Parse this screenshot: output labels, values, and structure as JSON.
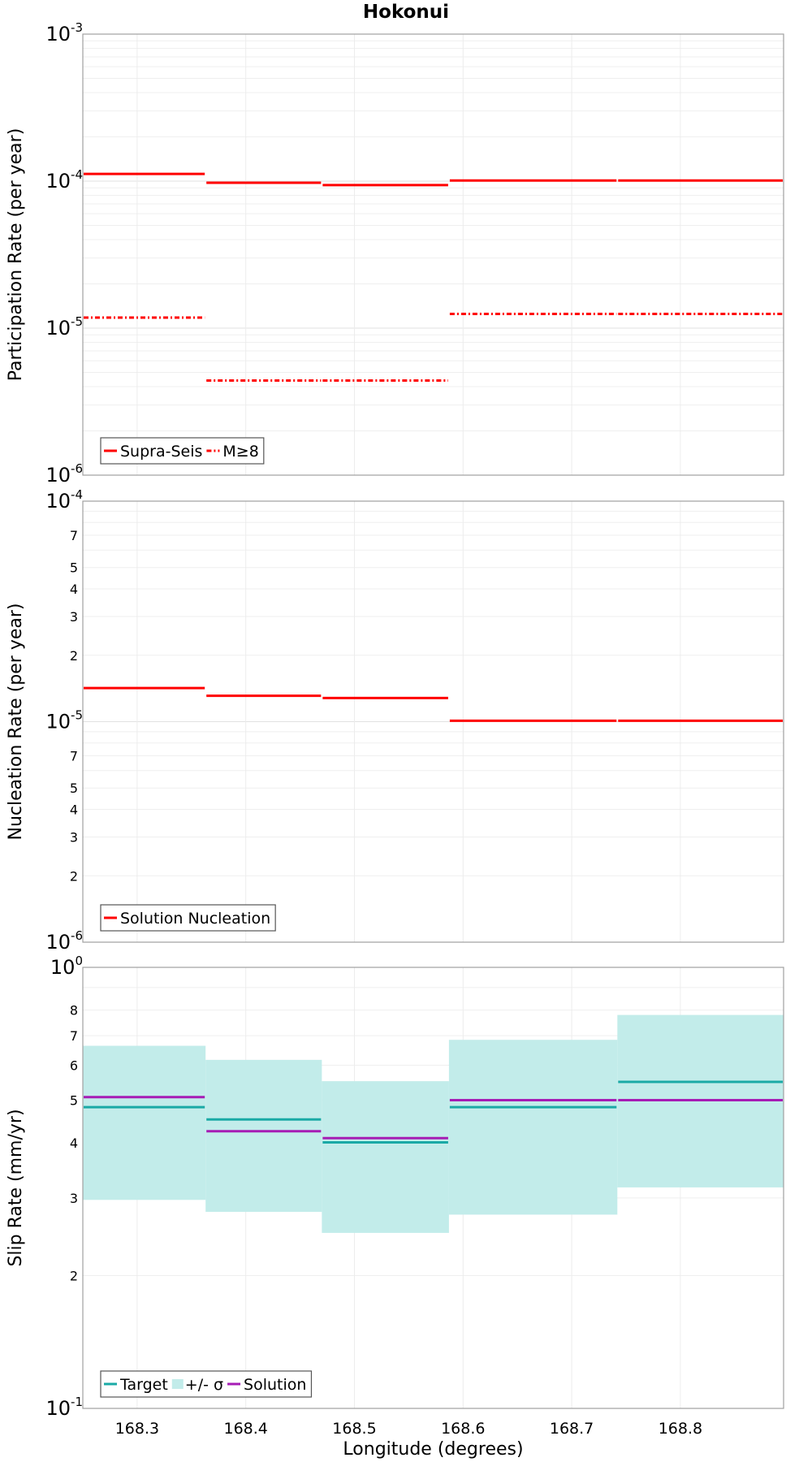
{
  "title": "Hokonui",
  "chart_data": [
    {
      "type": "line",
      "subtype": "step",
      "ylabel": "Participation Rate (per year)",
      "yscale": "log",
      "ylim": [
        1e-06,
        0.001
      ],
      "xlim": [
        168.25,
        168.895
      ],
      "grid": true,
      "legend_position": "bottom-left",
      "y_tick_labels": [
        {
          "base": "10",
          "exp": "-3",
          "value": 0.001
        },
        {
          "base": "10",
          "exp": "-4",
          "value": 0.0001
        },
        {
          "base": "10",
          "exp": "-5",
          "value": 1e-05
        },
        {
          "base": "10",
          "exp": "-6",
          "value": 1e-06
        }
      ],
      "series": [
        {
          "name": "Supra-Seis",
          "style": "solid",
          "color": "#ff0000",
          "segments": [
            {
              "x0": 168.25,
              "x1": 168.363,
              "y": 0.000112
            },
            {
              "x0": 168.363,
              "x1": 168.47,
              "y": 9.75e-05
            },
            {
              "x0": 168.47,
              "x1": 168.587,
              "y": 9.4e-05
            },
            {
              "x0": 168.587,
              "x1": 168.742,
              "y": 0.000101
            },
            {
              "x0": 168.742,
              "x1": 168.895,
              "y": 0.000101
            }
          ]
        },
        {
          "name": "M≥8",
          "style": "dashdot",
          "color": "#ff0000",
          "segments": [
            {
              "x0": 168.25,
              "x1": 168.363,
              "y": 1.18e-05
            },
            {
              "x0": 168.363,
              "x1": 168.47,
              "y": 4.4e-06
            },
            {
              "x0": 168.47,
              "x1": 168.587,
              "y": 4.4e-06
            },
            {
              "x0": 168.587,
              "x1": 168.742,
              "y": 1.25e-05
            },
            {
              "x0": 168.742,
              "x1": 168.895,
              "y": 1.25e-05
            }
          ]
        }
      ]
    },
    {
      "type": "line",
      "subtype": "step",
      "ylabel": "Nucleation Rate (per year)",
      "yscale": "log",
      "ylim": [
        1e-06,
        0.0001
      ],
      "xlim": [
        168.25,
        168.895
      ],
      "grid": true,
      "legend_position": "bottom-left",
      "y_tick_labels": [
        {
          "base": "10",
          "exp": "-4",
          "value": 0.0001
        },
        {
          "base": "10",
          "exp": "-5",
          "value": 1e-05
        },
        {
          "base": "10",
          "exp": "-6",
          "value": 1e-06
        }
      ],
      "minor_tick_labels": [
        {
          "label": "7",
          "value": 7e-05
        },
        {
          "label": "5",
          "value": 5e-05
        },
        {
          "label": "4",
          "value": 4e-05
        },
        {
          "label": "3",
          "value": 3e-05
        },
        {
          "label": "2",
          "value": 2e-05
        },
        {
          "label": "7",
          "value": 7e-06
        },
        {
          "label": "5",
          "value": 5e-06
        },
        {
          "label": "4",
          "value": 4e-06
        },
        {
          "label": "3",
          "value": 3e-06
        },
        {
          "label": "2",
          "value": 2e-06
        }
      ],
      "series": [
        {
          "name": "Solution Nucleation",
          "style": "solid",
          "color": "#ff0000",
          "segments": [
            {
              "x0": 168.25,
              "x1": 168.363,
              "y": 1.42e-05
            },
            {
              "x0": 168.363,
              "x1": 168.47,
              "y": 1.31e-05
            },
            {
              "x0": 168.47,
              "x1": 168.587,
              "y": 1.28e-05
            },
            {
              "x0": 168.587,
              "x1": 168.742,
              "y": 1.01e-05
            },
            {
              "x0": 168.742,
              "x1": 168.895,
              "y": 1.01e-05
            }
          ]
        }
      ]
    },
    {
      "type": "line",
      "subtype": "step",
      "xlabel": "Longitude (degrees)",
      "ylabel": "Slip Rate (mm/yr)",
      "yscale": "log",
      "ylim": [
        0.1,
        1
      ],
      "xlim": [
        168.25,
        168.895
      ],
      "grid": true,
      "legend_position": "bottom-left",
      "x_tick_labels": [
        "168.3",
        "168.4",
        "168.5",
        "168.6",
        "168.7",
        "168.8"
      ],
      "x_tick_values": [
        168.3,
        168.4,
        168.5,
        168.6,
        168.7,
        168.8
      ],
      "y_tick_labels": [
        {
          "base": "10",
          "exp": "0",
          "value": 1
        },
        {
          "base": "10",
          "exp": "-1",
          "value": 0.1
        }
      ],
      "minor_tick_labels": [
        {
          "label": "8",
          "value": 0.8
        },
        {
          "label": "7",
          "value": 0.7
        },
        {
          "label": "6",
          "value": 0.6
        },
        {
          "label": "5",
          "value": 0.5
        },
        {
          "label": "4",
          "value": 0.4
        },
        {
          "label": "3",
          "value": 0.3
        },
        {
          "label": "2",
          "value": 0.2
        }
      ],
      "band": {
        "name": "+/- σ",
        "color": "#c2ecea",
        "segments": [
          {
            "x0": 168.25,
            "x1": 168.363,
            "low": 0.297,
            "high": 0.664
          },
          {
            "x0": 168.363,
            "x1": 168.47,
            "low": 0.279,
            "high": 0.617
          },
          {
            "x0": 168.47,
            "x1": 168.587,
            "low": 0.25,
            "high": 0.552
          },
          {
            "x0": 168.587,
            "x1": 168.742,
            "low": 0.275,
            "high": 0.685
          },
          {
            "x0": 168.742,
            "x1": 168.895,
            "low": 0.317,
            "high": 0.78
          }
        ]
      },
      "series": [
        {
          "name": "Target",
          "style": "solid",
          "color": "#1aaaa6",
          "segments": [
            {
              "x0": 168.25,
              "x1": 168.363,
              "y": 0.482
            },
            {
              "x0": 168.363,
              "x1": 168.47,
              "y": 0.452
            },
            {
              "x0": 168.47,
              "x1": 168.587,
              "y": 0.401
            },
            {
              "x0": 168.587,
              "x1": 168.742,
              "y": 0.482
            },
            {
              "x0": 168.742,
              "x1": 168.895,
              "y": 0.55
            }
          ]
        },
        {
          "name": "Solution",
          "style": "solid",
          "color": "#a61cb4",
          "segments": [
            {
              "x0": 168.25,
              "x1": 168.363,
              "y": 0.508
            },
            {
              "x0": 168.363,
              "x1": 168.47,
              "y": 0.425
            },
            {
              "x0": 168.47,
              "x1": 168.587,
              "y": 0.41
            },
            {
              "x0": 168.587,
              "x1": 168.742,
              "y": 0.5
            },
            {
              "x0": 168.742,
              "x1": 168.895,
              "y": 0.5
            }
          ]
        }
      ]
    }
  ]
}
